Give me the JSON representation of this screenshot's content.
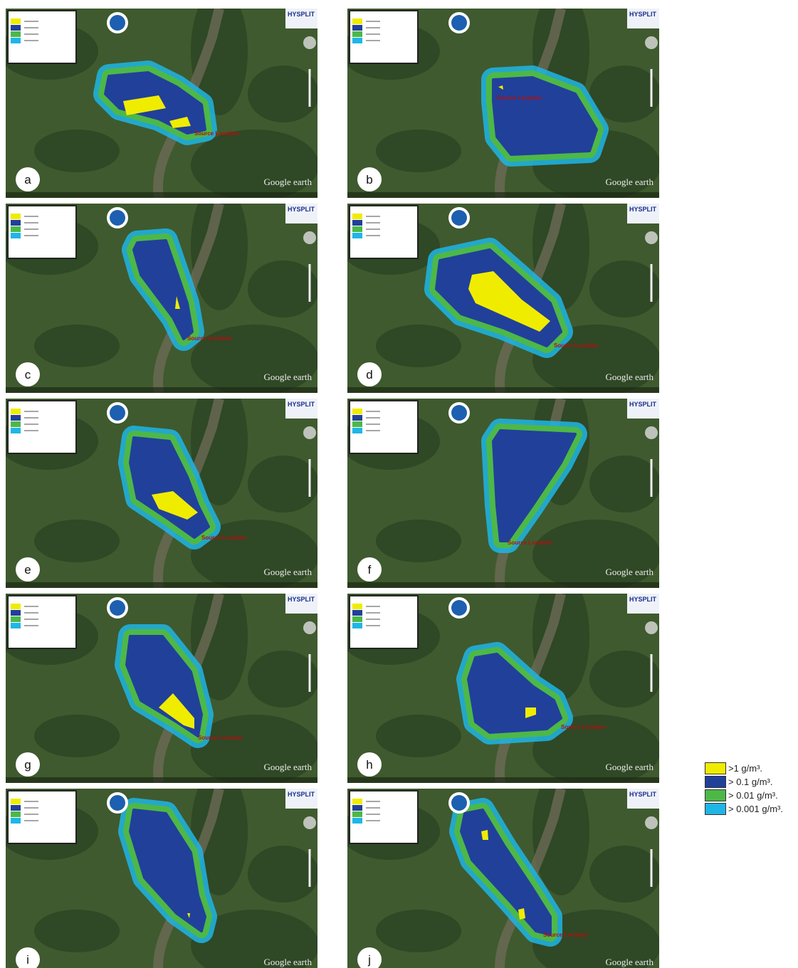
{
  "panels": [
    {
      "label": "a"
    },
    {
      "label": "b"
    },
    {
      "label": "c"
    },
    {
      "label": "d"
    },
    {
      "label": "e"
    },
    {
      "label": "f"
    },
    {
      "label": "g"
    },
    {
      "label": "h"
    },
    {
      "label": "i"
    },
    {
      "label": "j"
    }
  ],
  "map_text": {
    "hysplit": "HYSPLIT",
    "google_earth": "Google earth",
    "source": "Source Location"
  },
  "legend": [
    {
      "label": ">1 g/m³.",
      "color": "#f0ec00"
    },
    {
      "label": "> 0.1 g/m³.",
      "color": "#21409a"
    },
    {
      "label": "> 0.01 g/m³.",
      "color": "#4db848"
    },
    {
      "label": "> 0.001 g/m³.",
      "color": "#1fb6e6"
    }
  ]
}
